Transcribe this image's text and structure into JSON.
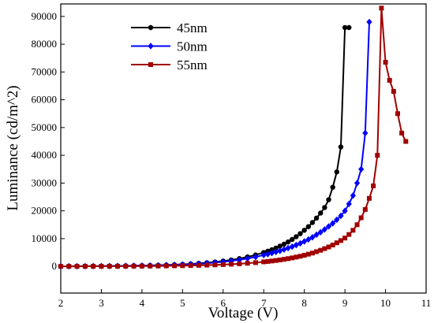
{
  "chart_data": {
    "type": "line",
    "x_label": "Voltage (V)",
    "y_label": "Luminance (cd/m^2)",
    "xlim": [
      2,
      11
    ],
    "xticks": [
      2,
      3,
      4,
      5,
      6,
      7,
      8,
      9,
      10,
      11
    ],
    "ylim": [
      -9600,
      94500
    ],
    "yticks": [
      0,
      10000,
      20000,
      30000,
      40000,
      50000,
      60000,
      70000,
      80000,
      90000
    ],
    "legend": "upper left",
    "series": [
      {
        "name": "45nm",
        "color": "#000000",
        "marker": "circle",
        "x": [
          2,
          2.2,
          2.4,
          2.6,
          2.8,
          3,
          3.2,
          3.4,
          3.6,
          3.8,
          4,
          4.2,
          4.4,
          4.6,
          4.8,
          5,
          5.2,
          5.4,
          5.6,
          5.8,
          6,
          6.2,
          6.4,
          6.6,
          6.8,
          7,
          7.1,
          7.2,
          7.3,
          7.4,
          7.5,
          7.6,
          7.7,
          7.8,
          7.9,
          8,
          8.1,
          8.2,
          8.3,
          8.4,
          8.5,
          8.6,
          8.7,
          8.8,
          8.9,
          9,
          9.1
        ],
        "values": [
          42,
          51,
          62,
          75,
          90,
          110,
          133,
          160,
          195,
          235,
          285,
          345,
          420,
          510,
          610,
          740,
          900,
          1090,
          1320,
          1590,
          1930,
          2330,
          2820,
          3410,
          4130,
          5000,
          5500,
          6000,
          6600,
          7300,
          8000,
          8800,
          9700,
          10700,
          11800,
          13000,
          14300,
          15800,
          17400,
          19200,
          21200,
          24000,
          28500,
          34000,
          43000,
          86000,
          86000
        ]
      },
      {
        "name": "50nm",
        "color": "#0000ff",
        "marker": "diamond",
        "x": [
          2,
          2.2,
          2.4,
          2.6,
          2.8,
          3,
          3.2,
          3.4,
          3.6,
          3.8,
          4,
          4.2,
          4.4,
          4.6,
          4.8,
          5,
          5.2,
          5.4,
          5.6,
          5.8,
          6,
          6.2,
          6.4,
          6.6,
          6.8,
          7,
          7.1,
          7.2,
          7.3,
          7.4,
          7.5,
          7.6,
          7.7,
          7.8,
          7.9,
          8,
          8.1,
          8.2,
          8.3,
          8.4,
          8.5,
          8.6,
          8.7,
          8.8,
          8.9,
          9,
          9.1,
          9.2,
          9.3,
          9.4,
          9.5,
          9.6
        ],
        "values": [
          43,
          52,
          62,
          75,
          89,
          107,
          129,
          155,
          185,
          222,
          267,
          320,
          385,
          460,
          555,
          665,
          800,
          960,
          1150,
          1380,
          1650,
          1980,
          2370,
          2850,
          3400,
          4100,
          4400,
          4800,
          5200,
          5600,
          6100,
          6600,
          7100,
          7700,
          8300,
          9000,
          9700,
          10500,
          11400,
          12300,
          13300,
          14400,
          15500,
          16800,
          18200,
          20000,
          22500,
          25500,
          30000,
          35000,
          48000,
          88000
        ]
      },
      {
        "name": "55nm",
        "color": "#a00000",
        "marker": "square",
        "x": [
          2,
          2.2,
          2.4,
          2.6,
          2.8,
          3,
          3.2,
          3.4,
          3.6,
          3.8,
          4,
          4.2,
          4.4,
          4.6,
          4.8,
          5,
          5.2,
          5.4,
          5.6,
          5.8,
          6,
          6.2,
          6.4,
          6.6,
          6.8,
          7,
          7.1,
          7.2,
          7.3,
          7.4,
          7.5,
          7.6,
          7.7,
          7.8,
          7.9,
          8,
          8.1,
          8.2,
          8.3,
          8.4,
          8.5,
          8.6,
          8.7,
          8.8,
          8.9,
          9,
          9.1,
          9.2,
          9.3,
          9.4,
          9.5,
          9.6,
          9.7,
          9.8,
          9.9,
          10,
          10.1,
          10.2,
          10.3,
          10.4,
          10.5
        ],
        "values": [
          17,
          20,
          24,
          29,
          35,
          42,
          51,
          61,
          73,
          88,
          106,
          127,
          152,
          182,
          219,
          263,
          315,
          380,
          455,
          545,
          655,
          785,
          940,
          1130,
          1360,
          1630,
          1780,
          1950,
          2130,
          2330,
          2550,
          2800,
          3050,
          3350,
          3650,
          4000,
          4400,
          4800,
          5300,
          5800,
          6400,
          7000,
          7700,
          8500,
          9300,
          10200,
          11500,
          13000,
          15000,
          17500,
          20500,
          24500,
          29000,
          40000,
          93000,
          73500,
          67000,
          63000,
          55000,
          48000,
          45000
        ]
      }
    ]
  }
}
